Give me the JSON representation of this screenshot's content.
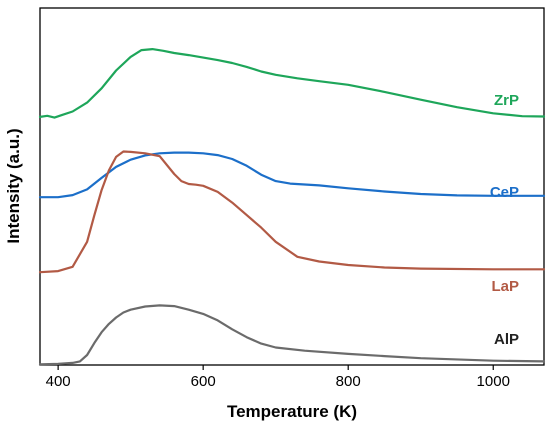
{
  "chart_data": {
    "type": "line",
    "title": "",
    "xlabel": "Temperature (K)",
    "ylabel": "Intensity (a.u.)",
    "xlim": [
      375,
      1070
    ],
    "ylim": [
      0,
      100
    ],
    "xticks": [
      400,
      600,
      800,
      1000
    ],
    "y_tick_labels": false,
    "grid": false,
    "legend": "inline labels beside curves",
    "series": [
      {
        "name": "ZrP",
        "color": "#1ea65a",
        "x": [
          375,
          385,
          395,
          405,
          420,
          440,
          460,
          480,
          500,
          515,
          530,
          545,
          560,
          580,
          600,
          620,
          640,
          660,
          680,
          700,
          730,
          760,
          800,
          850,
          900,
          950,
          1000,
          1040,
          1070
        ],
        "y": [
          69.5,
          69.8,
          69.3,
          70.0,
          71.0,
          73.5,
          77.5,
          82.5,
          86.3,
          88.2,
          88.5,
          88.0,
          87.4,
          86.8,
          86.1,
          85.4,
          84.6,
          83.5,
          82.2,
          81.3,
          80.3,
          79.5,
          78.5,
          76.5,
          74.3,
          72.2,
          70.5,
          69.7,
          69.6
        ]
      },
      {
        "name": "CeP",
        "color": "#1c6fc9",
        "x": [
          375,
          400,
          420,
          440,
          460,
          480,
          500,
          520,
          540,
          560,
          580,
          600,
          620,
          640,
          660,
          680,
          700,
          720,
          760,
          800,
          850,
          900,
          950,
          1000,
          1070
        ],
        "y": [
          47.0,
          47.0,
          47.6,
          49.2,
          52.4,
          55.5,
          57.5,
          58.7,
          59.3,
          59.5,
          59.5,
          59.3,
          58.8,
          57.7,
          55.8,
          53.3,
          51.5,
          50.8,
          50.3,
          49.5,
          48.6,
          47.9,
          47.5,
          47.4,
          47.4
        ]
      },
      {
        "name": "LaP",
        "color": "#b25a45",
        "x": [
          375,
          400,
          420,
          440,
          450,
          460,
          470,
          480,
          490,
          500,
          520,
          540,
          560,
          570,
          580,
          590,
          600,
          620,
          640,
          660,
          680,
          700,
          730,
          760,
          800,
          850,
          900,
          1000,
          1070
        ],
        "y": [
          26.0,
          26.3,
          27.5,
          34.5,
          42.0,
          49.0,
          54.5,
          58.3,
          59.8,
          59.7,
          59.3,
          58.5,
          53.5,
          51.5,
          50.7,
          50.5,
          50.2,
          48.5,
          45.5,
          42.0,
          38.5,
          34.5,
          30.3,
          29.0,
          28.0,
          27.3,
          27.0,
          26.8,
          26.8
        ]
      },
      {
        "name": "AlP",
        "color": "#6b6b6b",
        "x": [
          375,
          400,
          420,
          430,
          440,
          450,
          460,
          470,
          480,
          490,
          500,
          520,
          540,
          560,
          580,
          600,
          620,
          640,
          660,
          680,
          700,
          740,
          800,
          850,
          900,
          1000,
          1070
        ],
        "y": [
          0.2,
          0.3,
          0.6,
          1.0,
          2.8,
          6.2,
          9.2,
          11.5,
          13.3,
          14.7,
          15.5,
          16.4,
          16.7,
          16.5,
          15.5,
          14.3,
          12.5,
          10.0,
          7.8,
          6.0,
          4.9,
          4.0,
          3.1,
          2.5,
          1.9,
          1.2,
          1.0
        ]
      }
    ]
  }
}
